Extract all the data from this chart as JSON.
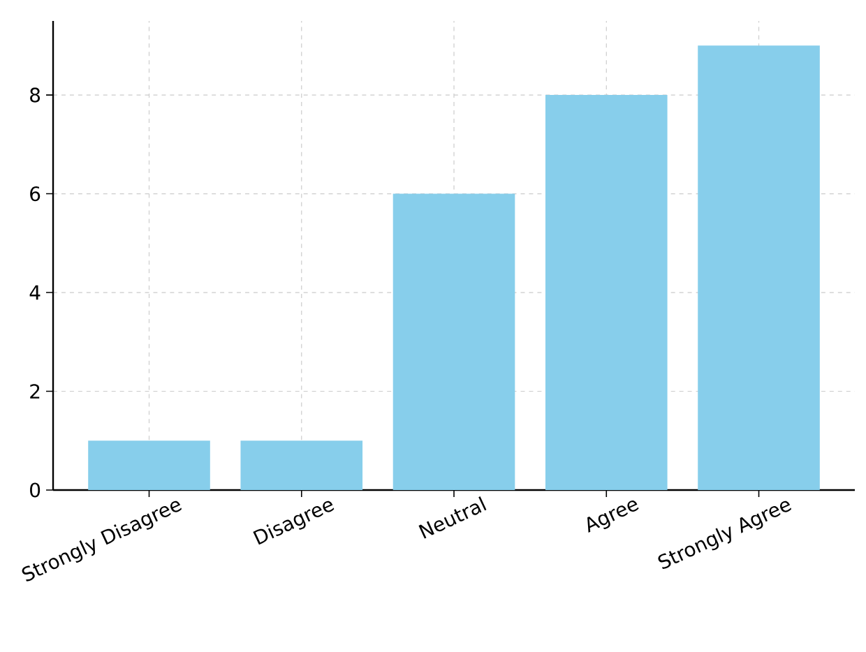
{
  "chart_data": {
    "type": "bar",
    "categories": [
      "Strongly Disagree",
      "Disagree",
      "Neutral",
      "Agree",
      "Strongly Agree"
    ],
    "values": [
      1,
      1,
      6,
      8,
      9
    ],
    "color": "#87ceeb",
    "ylim": [
      0,
      9.5
    ],
    "yticks": [
      0,
      2,
      4,
      6,
      8
    ],
    "grid": true
  }
}
